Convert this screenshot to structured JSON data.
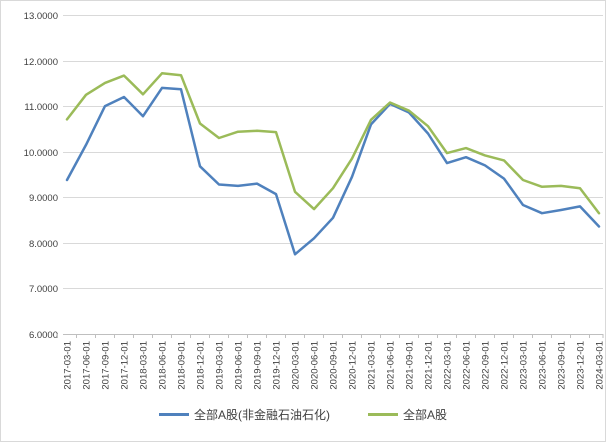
{
  "chart_data": {
    "type": "line",
    "title": "",
    "xlabel": "",
    "ylabel": "",
    "ylim": [
      6,
      13
    ],
    "grid": true,
    "legend_position": "bottom",
    "gridline_color": "#d9d9d9",
    "axis_color": "#bfbfbf",
    "text_color": "#404040",
    "y_ticks": [
      "13.0000",
      "12.0000",
      "11.0000",
      "10.0000",
      "9.0000",
      "8.0000",
      "7.0000",
      "6.0000"
    ],
    "categories": [
      "2017-03-01",
      "2017-06-01",
      "2017-09-01",
      "2017-12-01",
      "2018-03-01",
      "2018-06-01",
      "2018-09-01",
      "2018-12-01",
      "2019-03-01",
      "2019-06-01",
      "2019-09-01",
      "2019-12-01",
      "2020-03-01",
      "2020-06-01",
      "2020-09-01",
      "2020-12-01",
      "2021-03-01",
      "2021-06-01",
      "2021-09-01",
      "2021-12-01",
      "2022-03-01",
      "2022-06-01",
      "2022-09-01",
      "2022-12-01",
      "2023-03-01",
      "2023-06-01",
      "2023-09-01",
      "2023-12-01",
      "2024-03-01"
    ],
    "series": [
      {
        "name": "全部A股(非金融石油石化)",
        "color": "#4F81BD",
        "values": [
          9.38,
          10.15,
          11.0,
          11.2,
          10.78,
          11.4,
          11.37,
          9.68,
          9.28,
          9.25,
          9.3,
          9.07,
          7.75,
          8.1,
          8.55,
          9.45,
          10.6,
          11.05,
          10.86,
          10.4,
          9.75,
          9.88,
          9.7,
          9.41,
          8.83,
          8.65,
          8.72,
          8.8,
          8.36
        ]
      },
      {
        "name": "全部A股",
        "color": "#9BBB59",
        "values": [
          10.71,
          11.25,
          11.51,
          11.67,
          11.26,
          11.72,
          11.68,
          10.62,
          10.3,
          10.44,
          10.46,
          10.43,
          9.12,
          8.74,
          9.2,
          9.85,
          10.7,
          11.08,
          10.9,
          10.56,
          9.97,
          10.08,
          9.92,
          9.81,
          9.38,
          9.23,
          9.25,
          9.2,
          8.65
        ]
      }
    ]
  }
}
